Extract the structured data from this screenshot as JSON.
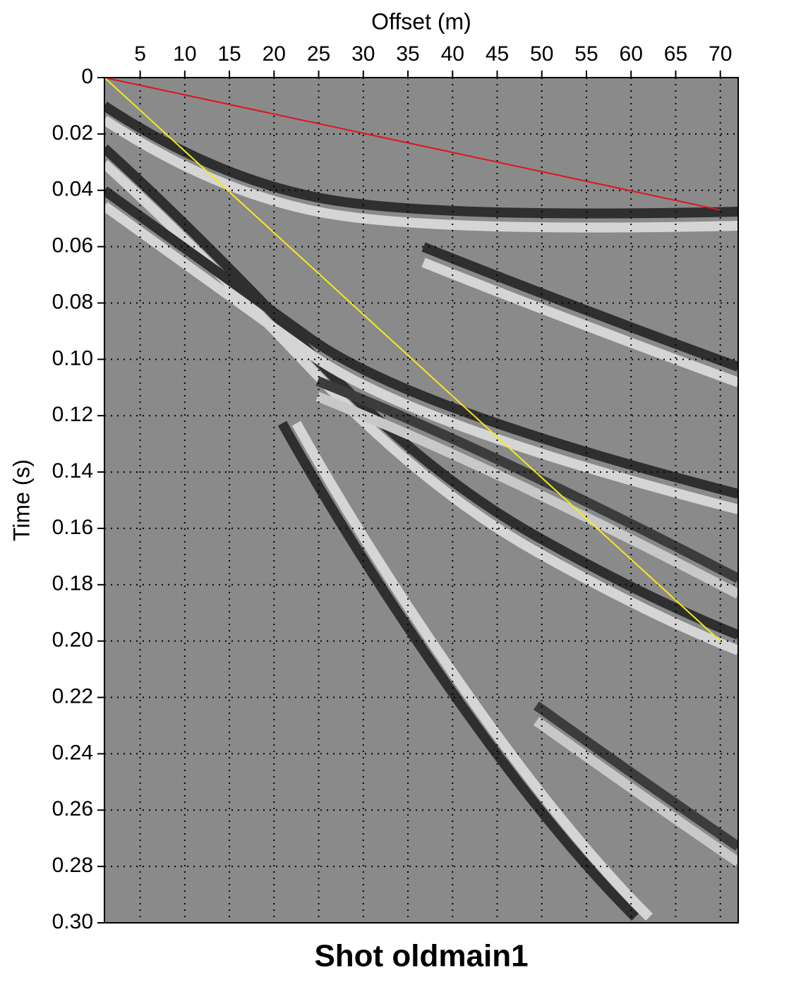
{
  "chart_data": {
    "type": "line",
    "title": "Shot oldmain1",
    "xlabel": "Offset (m)",
    "ylabel": "Time (s)",
    "xlim": [
      1,
      72
    ],
    "ylim": [
      0,
      0.3
    ],
    "y_inverted": true,
    "x_axis_position": "top",
    "xticks": [
      5,
      10,
      15,
      20,
      25,
      30,
      35,
      40,
      45,
      50,
      55,
      60,
      65,
      70
    ],
    "yticks": [
      0,
      0.02,
      0.04,
      0.06,
      0.08,
      {
        "value": 0.1,
        "label": "0.10"
      },
      0.12,
      0.14,
      0.16,
      0.18,
      {
        "value": 0.2,
        "label": "0.20"
      },
      0.22,
      0.24,
      0.26,
      0.28,
      {
        "value": 0.3,
        "label": "0.30"
      }
    ],
    "grid": true,
    "series": [
      {
        "color": "#e0141e",
        "x": [
          1,
          70
        ],
        "values": [
          0,
          0.047
        ]
      },
      {
        "color": "#f5eb19",
        "x": [
          1,
          70
        ],
        "values": [
          0,
          0.2
        ]
      }
    ]
  }
}
